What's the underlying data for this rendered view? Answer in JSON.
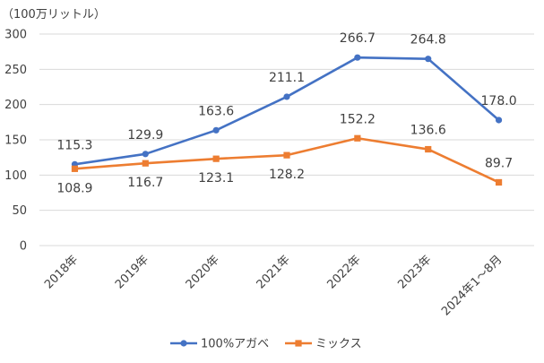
{
  "chart_data": {
    "type": "line",
    "unit_label": "（100万リットル）",
    "categories": [
      "2018年",
      "2019年",
      "2020年",
      "2021年",
      "2022年",
      "2023年",
      "2024年1～8月"
    ],
    "ylim": [
      0,
      300
    ],
    "yticks": [
      0,
      50,
      100,
      150,
      200,
      250,
      300
    ],
    "grid": true,
    "legend_position": "bottom",
    "series": [
      {
        "name": "100%アガベ",
        "color": "#4472C4",
        "marker": "circle",
        "values": [
          115.3,
          129.9,
          163.6,
          211.1,
          266.7,
          264.8,
          178.0
        ],
        "labels": [
          "115.3",
          "129.9",
          "163.6",
          "211.1",
          "266.7",
          "264.8",
          "178.0"
        ]
      },
      {
        "name": "ミックス",
        "color": "#ED7D31",
        "marker": "square",
        "values": [
          108.9,
          116.7,
          123.1,
          128.2,
          152.2,
          136.6,
          89.7
        ],
        "labels": [
          "108.9",
          "116.7",
          "123.1",
          "128.2",
          "152.2",
          "136.6",
          "89.7"
        ]
      }
    ]
  }
}
